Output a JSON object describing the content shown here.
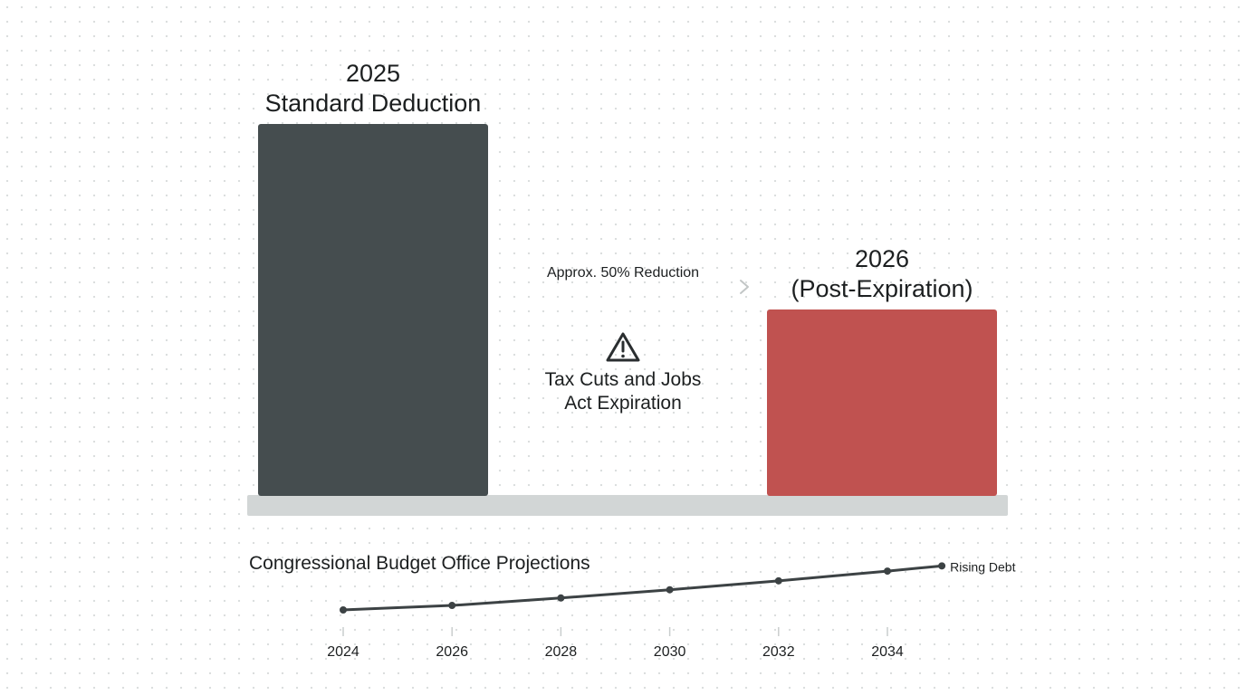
{
  "chart_data": [
    {
      "type": "bar",
      "bars": [
        {
          "id": "before",
          "label_lines": [
            "2025",
            "Standard Deduction"
          ],
          "value": 100,
          "color": "#454d4f"
        },
        {
          "id": "after",
          "label_lines": [
            "2026",
            "(Post-Expiration)"
          ],
          "value": 50,
          "color": "#c05250"
        }
      ],
      "baseline_color": "#d2d6d6",
      "arrow_label": "Approx. 50% Reduction",
      "warning": {
        "icon": "warning-triangle-icon",
        "lines": [
          "Tax Cuts and Jobs",
          "Act Expiration"
        ]
      },
      "ylim": [
        0,
        100
      ]
    },
    {
      "type": "line",
      "title": "Congressional Budget Office Projections",
      "series": [
        {
          "name": "Rising Debt",
          "x": [
            2024,
            2026,
            2028,
            2030,
            2032,
            2034,
            2035
          ],
          "y": [
            0,
            0.6,
            1.6,
            2.7,
            3.9,
            5.2,
            5.9
          ],
          "color": "#3c4244"
        }
      ],
      "x_ticks": [
        2024,
        2026,
        2028,
        2030,
        2032,
        2034
      ],
      "xlim": [
        2024,
        2035
      ],
      "ylim": [
        0,
        6
      ],
      "grid": false
    }
  ]
}
